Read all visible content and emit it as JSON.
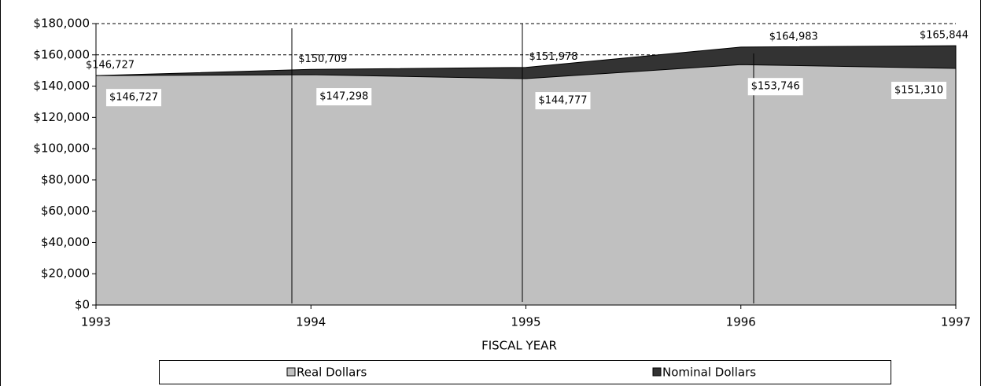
{
  "chart_data": {
    "type": "area",
    "x_label": "FISCAL YEAR",
    "categories": [
      "1993",
      "1994",
      "1995",
      "1996",
      "1997"
    ],
    "series": [
      {
        "name": "Nominal Dollars",
        "color": "#333333",
        "values": [
          146727,
          150709,
          151978,
          164983,
          165844
        ],
        "value_labels": [
          "$146,727",
          "$150,709",
          "$151,978",
          "$164,983",
          "$165,844"
        ]
      },
      {
        "name": "Real Dollars",
        "color": "#c0c0c0",
        "values": [
          146727,
          147298,
          144777,
          153746,
          151310
        ],
        "value_labels": [
          "$146,727",
          "$147,298",
          "$144,777",
          "$153,746",
          "$151,310"
        ]
      }
    ],
    "legend_order": [
      "Real Dollars",
      "Nominal Dollars"
    ],
    "ylim": [
      0,
      180000
    ],
    "yticks": [
      {
        "value": 0,
        "label": "$0"
      },
      {
        "value": 20000,
        "label": "$20,000"
      },
      {
        "value": 40000,
        "label": "$40,000"
      },
      {
        "value": 60000,
        "label": "$60,000"
      },
      {
        "value": 80000,
        "label": "$80,000"
      },
      {
        "value": 100000,
        "label": "$100,000"
      },
      {
        "value": 120000,
        "label": "$120,000"
      },
      {
        "value": 140000,
        "label": "$140,000"
      },
      {
        "value": 160000,
        "label": "$160,000"
      },
      {
        "value": 180000,
        "label": "$180,000"
      }
    ],
    "grid_ticks": [
      160000,
      180000
    ],
    "grid": true
  }
}
